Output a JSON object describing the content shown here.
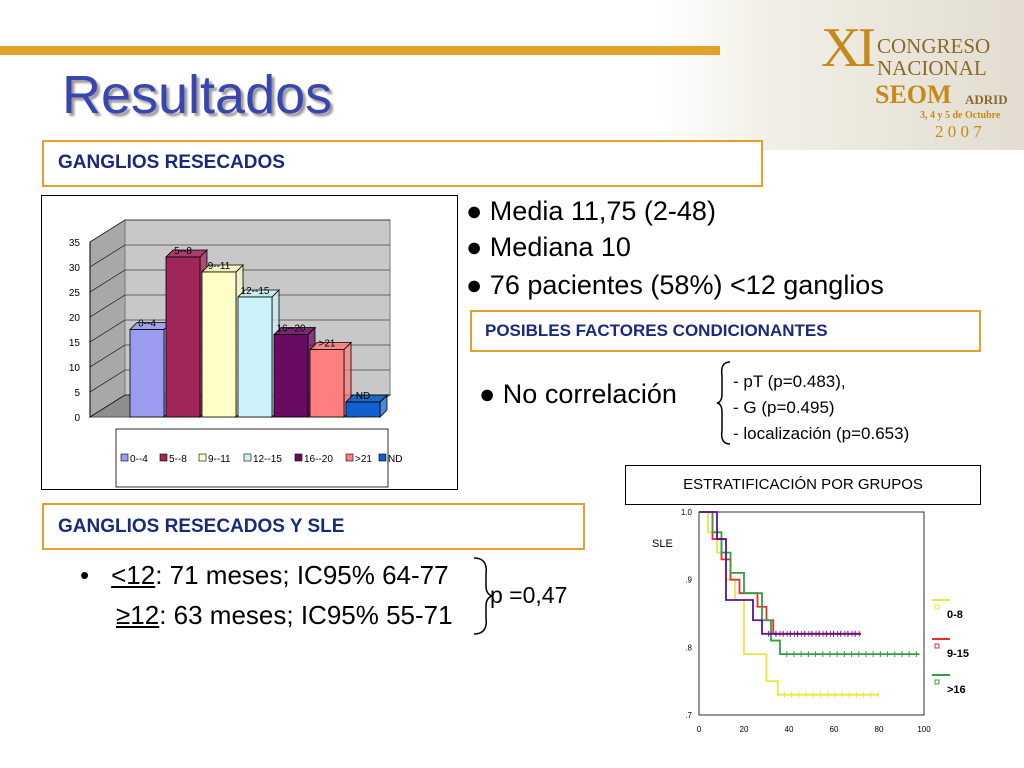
{
  "slide": {
    "title": "Resultados",
    "section1": "GANGLIOS RESECADOS",
    "stats": [
      "● Media 11,75 (2-48)",
      "● Mediana 10",
      "● 76 pacientes (58%) <12 ganglios"
    ],
    "factors_title": "POSIBLES FACTORES CONDICIONANTES",
    "no_corr": "● No correlación",
    "corr_items": [
      "- pT (p=0.483),",
      "- G (p=0.495)",
      "- localización (p=0.653)"
    ],
    "strat_title": "ESTRATIFICACIÓN POR GRUPOS",
    "section2": "GANGLIOS RESECADOS Y SLE",
    "sle_bullet": "•",
    "sle_row1": {
      "label": "<12",
      "rest": ": 71 meses; IC95% 64-77"
    },
    "sle_row2": {
      "label": "≥12",
      "rest": ": 63 meses; IC95% 55-71"
    },
    "pvalue": "p =0,47"
  },
  "logo": {
    "roman": "XI",
    "line1": "CONGRESO",
    "line2": "NACIONAL",
    "line3": "SEOM",
    "city": "ADRID",
    "dates": "3, 4 y 5 de Octubre",
    "year": "2 0 0 7"
  },
  "chart_data": [
    {
      "type": "bar",
      "categories": [
        "0--4",
        "5--8",
        "9--11",
        "12--15",
        "16--20",
        ">21",
        "ND"
      ],
      "values": [
        17.5,
        32,
        29,
        24,
        16.5,
        13.5,
        3
      ],
      "colors": [
        "#9b9bf0",
        "#a0265a",
        "#ffffc8",
        "#cdf3fa",
        "#6a0b62",
        "#ff7f7f",
        "#1060d0"
      ],
      "ylim": [
        0,
        35
      ],
      "yticks": [
        "0",
        "5",
        "10",
        "15",
        "20",
        "25",
        "30",
        "35"
      ],
      "legend": [
        "0--4",
        "5--8",
        "9--11",
        "12--15",
        "16--20",
        ">21",
        "ND"
      ],
      "legend_position": "bottom",
      "grid": true
    },
    {
      "type": "line",
      "ylabel": "SLE",
      "xticks": [
        "0",
        "20",
        "40",
        "60",
        "80",
        "100"
      ],
      "yticks": [
        "1.0",
        ".9",
        ".8",
        ".7"
      ],
      "xlim": [
        0,
        100
      ],
      "ylim": [
        0.7,
        1.0
      ],
      "series": [
        {
          "name": "0-8",
          "color": "#e8e840",
          "x": [
            0,
            4,
            4,
            8,
            8,
            12,
            12,
            16,
            16,
            20,
            20,
            30,
            30,
            35,
            35,
            80
          ],
          "y": [
            1.0,
            1.0,
            0.97,
            0.97,
            0.94,
            0.94,
            0.9,
            0.9,
            0.87,
            0.87,
            0.79,
            0.79,
            0.75,
            0.75,
            0.73,
            0.73
          ]
        },
        {
          "name": "9-15",
          "color": "#e03030",
          "x": [
            0,
            6,
            6,
            10,
            10,
            14,
            14,
            18,
            18,
            26,
            26,
            30,
            30,
            33,
            33,
            72
          ],
          "y": [
            1.0,
            1.0,
            0.96,
            0.96,
            0.93,
            0.93,
            0.9,
            0.9,
            0.88,
            0.88,
            0.86,
            0.86,
            0.84,
            0.84,
            0.82,
            0.82
          ]
        },
        {
          "name": ">16",
          "color": "#30a040",
          "x": [
            0,
            6,
            6,
            10,
            10,
            14,
            14,
            20,
            20,
            28,
            28,
            32,
            32,
            36,
            36,
            98
          ],
          "y": [
            1.0,
            1.0,
            0.97,
            0.97,
            0.94,
            0.94,
            0.91,
            0.91,
            0.88,
            0.88,
            0.84,
            0.84,
            0.81,
            0.81,
            0.79,
            0.79
          ]
        },
        {
          "name": "",
          "color": "#601090",
          "x": [
            0,
            8,
            8,
            12,
            12,
            24,
            24,
            28,
            28,
            72
          ],
          "y": [
            1.0,
            1.0,
            0.96,
            0.96,
            0.87,
            0.87,
            0.84,
            0.84,
            0.82,
            0.82
          ]
        }
      ]
    }
  ]
}
